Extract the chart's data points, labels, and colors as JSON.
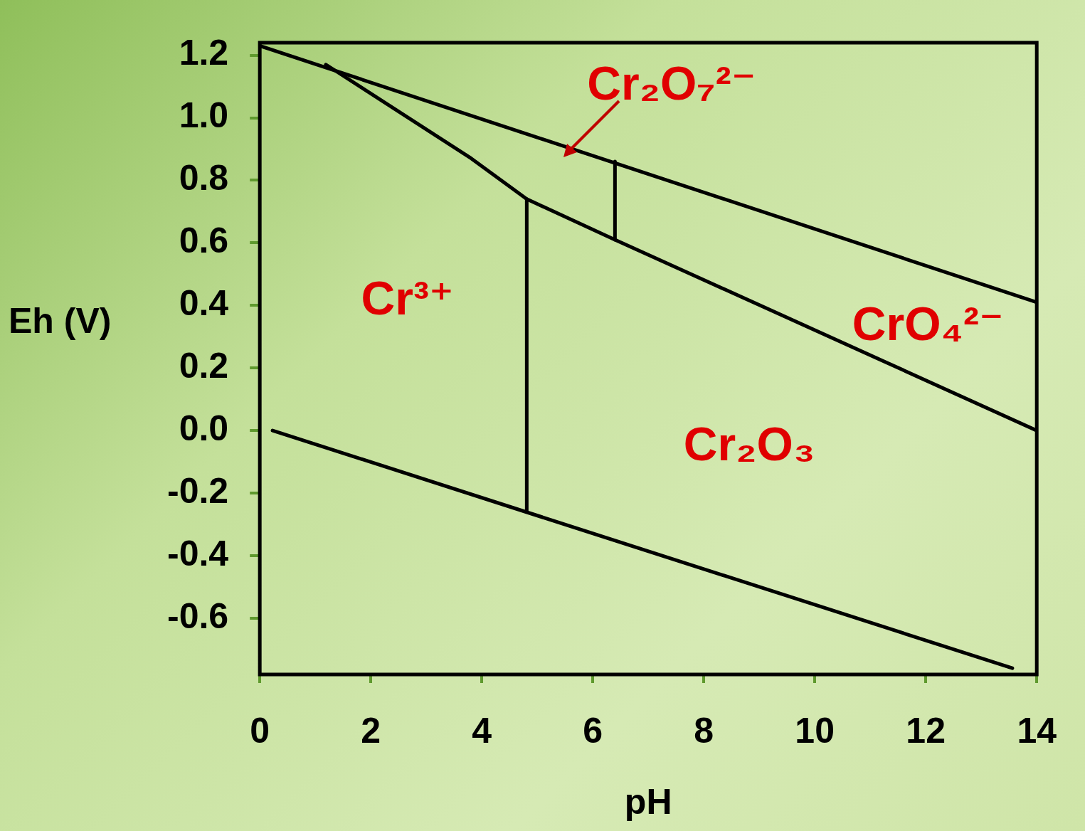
{
  "chart_data": {
    "type": "line",
    "xlabel": "pH",
    "ylabel": "Eh (V)",
    "xlim": [
      0,
      14
    ],
    "xticks": [
      0,
      2,
      4,
      6,
      8,
      10,
      12,
      14
    ],
    "ylim": [
      -0.78,
      1.24
    ],
    "yticks": [
      -0.6,
      -0.4,
      -0.2,
      {
        "value": 0,
        "label": "0.0"
      },
      0.2,
      0.4,
      0.6,
      0.8,
      {
        "value": 1,
        "label": "1.0"
      },
      1.2
    ],
    "grid": false,
    "legend": false,
    "marker": "none",
    "line_style": "solid",
    "series": [
      {
        "color": "#000000",
        "x": [
          0,
          14
        ],
        "values": [
          1.23,
          0.41
        ]
      },
      {
        "color": "#000000",
        "x": [
          1.19,
          3.81,
          4.81,
          6.4,
          14
        ],
        "values": [
          1.17,
          0.87,
          0.74,
          0.61,
          0.0
        ]
      },
      {
        "color": "#000000",
        "x": [
          4.81,
          4.81
        ],
        "values": [
          0.74,
          -0.26
        ]
      },
      {
        "color": "#000000",
        "x": [
          6.4,
          6.4
        ],
        "values": [
          0.86,
          0.61
        ]
      },
      {
        "color": "#000000",
        "x": [
          0.23,
          13.56
        ],
        "values": [
          0.0,
          -0.76
        ]
      }
    ],
    "annotations": [
      "Cr₂O₇²⁻",
      "Cr³⁺",
      "CrO₄²⁻",
      "Cr₂O₃"
    ]
  }
}
